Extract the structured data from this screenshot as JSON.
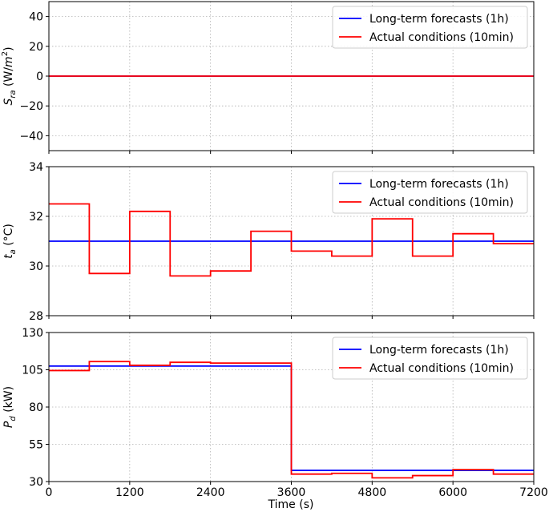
{
  "figure": {
    "xlabel": "Time (s)"
  },
  "chart_data": [
    {
      "type": "line",
      "ylabel": "S_ra (W/m²)",
      "ylabel_parts": [
        {
          "t": "S",
          "style": "italic"
        },
        {
          "t": "ra",
          "style": "italic-sub"
        },
        {
          "t": " (W/",
          "style": "normal"
        },
        {
          "t": "m",
          "style": "italic"
        },
        {
          "t": "2",
          "style": "sup"
        },
        {
          "t": ")",
          "style": "normal"
        }
      ],
      "xlim": [
        0,
        7200
      ],
      "ylim": [
        -50,
        50
      ],
      "yticks": [
        -40,
        -20,
        0,
        20,
        40
      ],
      "ytick_labels": [
        "−40",
        "−20",
        "0",
        "20",
        "40"
      ],
      "xticks": [
        0,
        1200,
        2400,
        3600,
        4800,
        6000,
        7200
      ],
      "xtick_labels": [],
      "grid": true,
      "legend_loc": "upper right",
      "series": [
        {
          "name": "Long-term forecasts (1h)",
          "color": "#0000ff",
          "x": [
            0,
            3600,
            7200
          ],
          "y": [
            0,
            0,
            0
          ]
        },
        {
          "name": "Actual conditions (10min)",
          "color": "#ff0000",
          "x": [
            0,
            600,
            1200,
            1800,
            2400,
            3000,
            3600,
            4200,
            4800,
            5400,
            6000,
            6600,
            7200
          ],
          "y": [
            0,
            0,
            0,
            0,
            0,
            0,
            0,
            0,
            0,
            0,
            0,
            0,
            0
          ]
        }
      ]
    },
    {
      "type": "line",
      "ylabel": "t_a (°C)",
      "ylabel_parts": [
        {
          "t": "t",
          "style": "italic"
        },
        {
          "t": "a",
          "style": "italic-sub"
        },
        {
          "t": " (°C)",
          "style": "normal"
        }
      ],
      "xlim": [
        0,
        7200
      ],
      "ylim": [
        28,
        34
      ],
      "yticks": [
        28,
        30,
        32,
        34
      ],
      "ytick_labels": [
        "28",
        "30",
        "32",
        "34"
      ],
      "xticks": [
        0,
        1200,
        2400,
        3600,
        4800,
        6000,
        7200
      ],
      "xtick_labels": [],
      "grid": true,
      "legend_loc": "upper right",
      "series": [
        {
          "name": "Long-term forecasts (1h)",
          "color": "#0000ff",
          "x": [
            0,
            3600,
            7200
          ],
          "y": [
            31.0,
            31.0,
            31.0
          ]
        },
        {
          "name": "Actual conditions (10min)",
          "color": "#ff0000",
          "x": [
            0,
            600,
            1200,
            1800,
            2400,
            3000,
            3600,
            4200,
            4800,
            5400,
            6000,
            6600,
            7200
          ],
          "y": [
            32.5,
            29.7,
            32.2,
            29.6,
            29.8,
            31.4,
            30.6,
            30.4,
            31.9,
            30.4,
            31.3,
            30.9,
            30.9
          ]
        }
      ]
    },
    {
      "type": "line",
      "ylabel": "P_d (kW)",
      "ylabel_parts": [
        {
          "t": "P",
          "style": "italic"
        },
        {
          "t": "d",
          "style": "italic-sub"
        },
        {
          "t": " (kW)",
          "style": "normal"
        }
      ],
      "xlim": [
        0,
        7200
      ],
      "ylim": [
        30,
        130
      ],
      "yticks": [
        30,
        55,
        80,
        105,
        130
      ],
      "ytick_labels": [
        "30",
        "55",
        "80",
        "105",
        "130"
      ],
      "xticks": [
        0,
        1200,
        2400,
        3600,
        4800,
        6000,
        7200
      ],
      "xtick_labels": [
        "0",
        "1200",
        "2400",
        "3600",
        "4800",
        "6000",
        "7200"
      ],
      "grid": true,
      "legend_loc": "upper right",
      "series": [
        {
          "name": "Long-term forecasts (1h)",
          "color": "#0000ff",
          "x": [
            0,
            3600,
            7200
          ],
          "y": [
            107.5,
            37.5,
            37.5
          ]
        },
        {
          "name": "Actual conditions (10min)",
          "color": "#ff0000",
          "x": [
            0,
            600,
            1200,
            1800,
            2400,
            3000,
            3600,
            4200,
            4800,
            5400,
            6000,
            6600,
            7200
          ],
          "y": [
            104.5,
            110.5,
            108,
            110,
            109.5,
            109.5,
            35,
            35.5,
            32.5,
            34,
            38,
            35,
            35
          ]
        }
      ]
    }
  ]
}
